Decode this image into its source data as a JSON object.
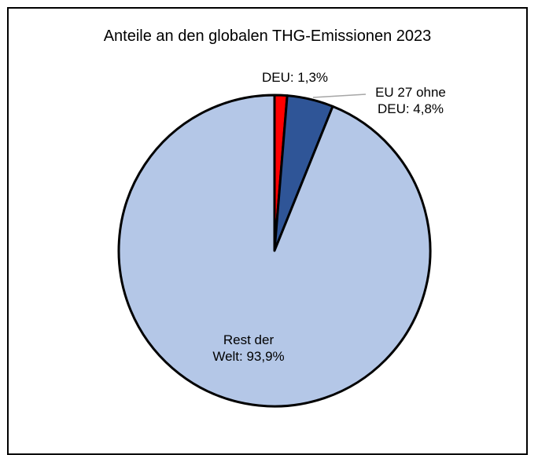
{
  "chart_data": {
    "type": "pie",
    "title": "Anteile an den globalen THG-Emissionen 2023",
    "slices": [
      {
        "name": "DEU",
        "value": 1.3,
        "color": "#ff0000",
        "label_lines": [
          "DEU: 1,3%"
        ]
      },
      {
        "name": "EU 27 ohne DEU",
        "value": 4.8,
        "color": "#2f5597",
        "label_lines": [
          "EU 27 ohne",
          "DEU: 4,8%"
        ]
      },
      {
        "name": "Rest der Welt",
        "value": 93.9,
        "color": "#b4c7e7",
        "label_lines": [
          "Rest der",
          "Welt: 93,9%"
        ]
      }
    ]
  }
}
